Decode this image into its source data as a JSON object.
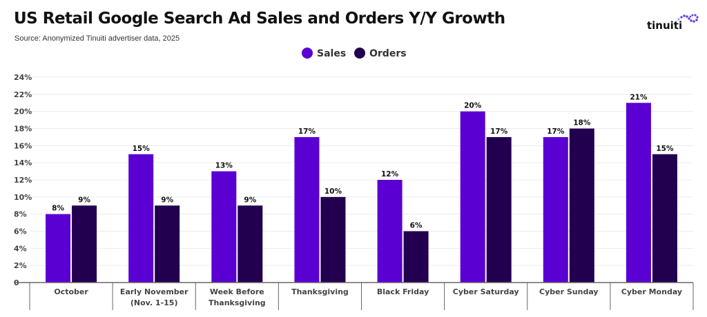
{
  "chart_data": {
    "type": "bar",
    "title": "US Retail Google Search Ad Sales and Orders Y/Y Growth",
    "subtitle": "Source: Anonymized Tinuiti advertiser data, 2025",
    "logo_text": "tinuiti",
    "categories": [
      "October",
      "Early November\n(Nov. 1-15)",
      "Week Before\nThanksgiving",
      "Thanksgiving",
      "Black Friday",
      "Cyber Saturday",
      "Cyber Sunday",
      "Cyber Monday"
    ],
    "series": [
      {
        "name": "Sales",
        "color": "#5a00d2",
        "values": [
          8,
          15,
          13,
          17,
          12,
          20,
          17,
          21
        ]
      },
      {
        "name": "Orders",
        "color": "#22004f",
        "values": [
          9,
          9,
          9,
          10,
          6,
          17,
          18,
          15
        ]
      }
    ],
    "ylim": [
      0,
      24
    ],
    "yticks": [
      "0",
      "2%",
      "4%",
      "6%",
      "8%",
      "10%",
      "12%",
      "14%",
      "16%",
      "18%",
      "20%",
      "22%",
      "24%"
    ],
    "data_label_suffix": "%",
    "legend_position": "top-center",
    "grid": true,
    "xlabel": "",
    "ylabel": ""
  }
}
